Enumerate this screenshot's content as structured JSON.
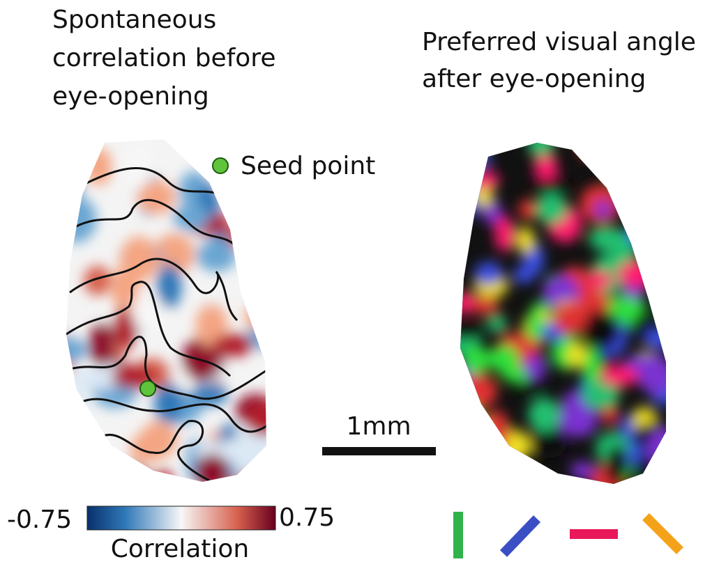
{
  "left_panel": {
    "title_lines": [
      "Spontaneous",
      "correlation before",
      "eye-opening"
    ],
    "seed_label": "Seed point",
    "colorbar": {
      "min_label": "-0.75",
      "max_label": "0.75",
      "label": "Correlation"
    }
  },
  "right_panel": {
    "title_lines": [
      "Preferred visual angle",
      "after eye-opening"
    ]
  },
  "scale_bar": {
    "label": "1mm"
  }
}
